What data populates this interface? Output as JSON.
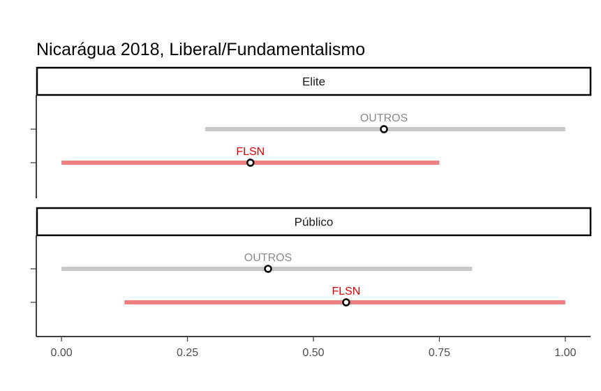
{
  "chart_data": {
    "type": "interval",
    "title": "Nicarágua 2018, Liberal/Fundamentalismo",
    "xlim": [
      -0.05,
      1.05
    ],
    "x_ticks": [
      0,
      0.25,
      0.5,
      0.75,
      1
    ],
    "x_tick_labels": [
      "0.00",
      "0.25",
      "0.50",
      "0.75",
      "1.00"
    ],
    "colors": {
      "OUTROS": "#c8c8c8",
      "FLSN": "#f08080",
      "OUTROS_label": "#8c8c8c",
      "FLSN_label": "#e00000"
    },
    "panels": [
      {
        "label": "Elite",
        "series": [
          {
            "name": "OUTROS",
            "estimate": 0.64,
            "low": 0.285,
            "high": 1.0
          },
          {
            "name": "FLSN",
            "estimate": 0.375,
            "low": 0.0,
            "high": 0.75
          }
        ]
      },
      {
        "label": "Público",
        "series": [
          {
            "name": "OUTROS",
            "estimate": 0.41,
            "low": 0.0,
            "high": 0.815
          },
          {
            "name": "FLSN",
            "estimate": 0.565,
            "low": 0.125,
            "high": 1.0
          }
        ]
      }
    ]
  }
}
